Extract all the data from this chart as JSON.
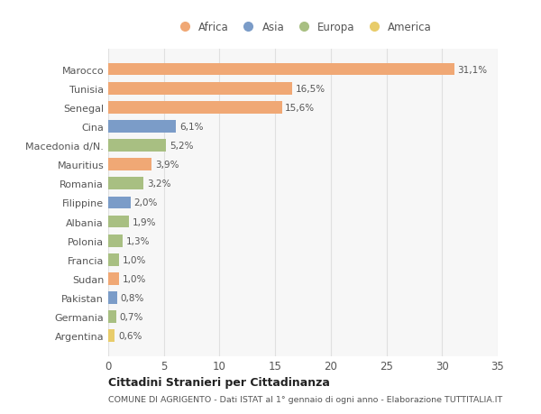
{
  "countries": [
    "Marocco",
    "Tunisia",
    "Senegal",
    "Cina",
    "Macedonia d/N.",
    "Mauritius",
    "Romania",
    "Filippine",
    "Albania",
    "Polonia",
    "Francia",
    "Sudan",
    "Pakistan",
    "Germania",
    "Argentina"
  ],
  "values": [
    31.1,
    16.5,
    15.6,
    6.1,
    5.2,
    3.9,
    3.2,
    2.0,
    1.9,
    1.3,
    1.0,
    1.0,
    0.8,
    0.7,
    0.6
  ],
  "labels": [
    "31,1%",
    "16,5%",
    "15,6%",
    "6,1%",
    "5,2%",
    "3,9%",
    "3,2%",
    "2,0%",
    "1,9%",
    "1,3%",
    "1,0%",
    "1,0%",
    "0,8%",
    "0,7%",
    "0,6%"
  ],
  "continents": [
    "Africa",
    "Africa",
    "Africa",
    "Asia",
    "Europa",
    "Africa",
    "Europa",
    "Asia",
    "Europa",
    "Europa",
    "Europa",
    "Africa",
    "Asia",
    "Europa",
    "America"
  ],
  "continent_colors": {
    "Africa": "#F0A875",
    "Asia": "#7B9CC8",
    "Europa": "#A8BF82",
    "America": "#E8CC6A"
  },
  "legend_order": [
    "Africa",
    "Asia",
    "Europa",
    "America"
  ],
  "title1": "Cittadini Stranieri per Cittadinanza",
  "title2": "COMUNE DI AGRIGENTO - Dati ISTAT al 1° gennaio di ogni anno - Elaborazione TUTTITALIA.IT",
  "xlim": [
    0,
    35
  ],
  "xticks": [
    0,
    5,
    10,
    15,
    20,
    25,
    30,
    35
  ],
  "background_color": "#ffffff",
  "plot_bg_color": "#f7f7f7",
  "grid_color": "#e0e0e0"
}
